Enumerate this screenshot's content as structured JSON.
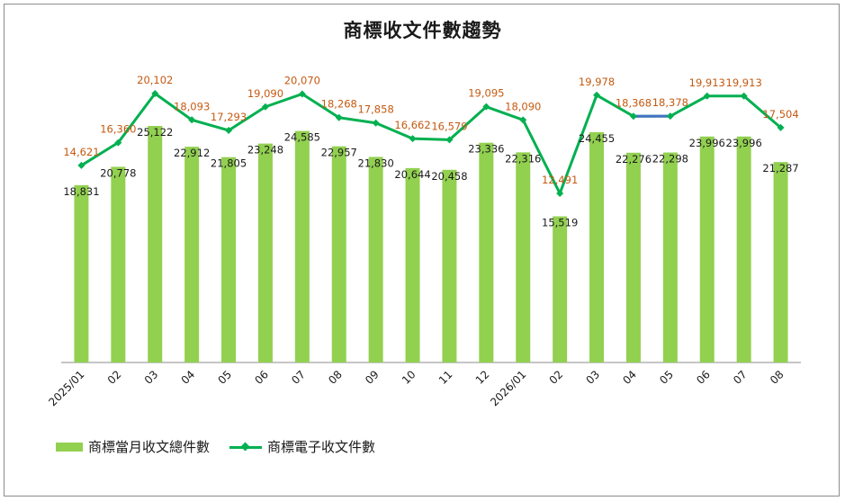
{
  "chart_data": {
    "type": "bar+line",
    "title": "商標收文件數趨勢",
    "categories": [
      "2025/01",
      "02",
      "03",
      "04",
      "05",
      "06",
      "07",
      "08",
      "09",
      "10",
      "11",
      "12",
      "2026/01",
      "02",
      "03",
      "04",
      "05",
      "06",
      "07",
      "08"
    ],
    "series": [
      {
        "name": "商標當月收文總件數",
        "type": "bar",
        "color": "#92d050",
        "values": [
          18831,
          20778,
          25122,
          22912,
          21805,
          23248,
          24585,
          22957,
          21830,
          20644,
          20458,
          23336,
          22316,
          15519,
          24455,
          22276,
          22298,
          23996,
          23996,
          21287
        ],
        "labels": [
          "18,831",
          "20,778",
          "25,122",
          "22,912",
          "21,805",
          "23,248",
          "24,585",
          "22,957",
          "21,830",
          "20,644",
          "20,458",
          "23,336",
          "22,316",
          "15,519",
          "24,455",
          "22,276",
          "22,298",
          "23,996",
          "23,996",
          "21,287"
        ]
      },
      {
        "name": "商標電子收文件數",
        "type": "line",
        "color": "#00b050",
        "values": [
          14621,
          16360,
          20102,
          18093,
          17293,
          19090,
          20070,
          18268,
          17858,
          16662,
          16579,
          19095,
          18090,
          12491,
          19978,
          18368,
          18378,
          19913,
          19913,
          17504
        ],
        "labels": [
          "14,621",
          "16,360",
          "20,102",
          "18,093",
          "17,293",
          "19,090",
          "20,070",
          "18,268",
          "17,858",
          "16,662",
          "16,579",
          "19,095",
          "18,090",
          "12,491",
          "19,978",
          "18,368",
          "18,378",
          "19,913",
          "19,913",
          "17,504"
        ],
        "label_color": "#c55a11",
        "highlight_segment_color": "#4472c4"
      }
    ],
    "legend_position": "bottom-left",
    "grid": false
  },
  "legend": {
    "bar_label": "商標當月收文總件數",
    "line_label": "商標電子收文件數"
  }
}
